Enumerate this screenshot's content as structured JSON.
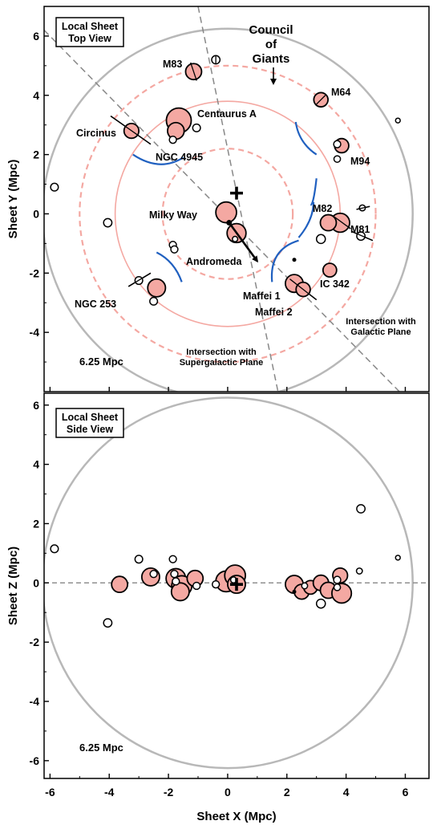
{
  "colors": {
    "galaxy_fill": "#f4a8a2",
    "ring": "#f4a8a2",
    "boundary": "#b8b8b8",
    "wall": "#2060c0",
    "plane_line": "#888888"
  },
  "x_axis_title": "Sheet X (Mpc)",
  "x_ticks": [
    "-6",
    "-4",
    "-2",
    "0",
    "2",
    "4",
    "6"
  ],
  "chart_data": [
    {
      "type": "scatter",
      "title_lines": [
        "Local Sheet",
        "Top View"
      ],
      "xlabel": "Sheet X (Mpc)",
      "ylabel": "Sheet Y (Mpc)",
      "xlim": [
        -6.2,
        6.8
      ],
      "ylim": [
        -6.0,
        7.0
      ],
      "y_ticks": [
        "-4",
        "-2",
        "0",
        "2",
        "4",
        "6"
      ],
      "boundary_radius": 6.25,
      "boundary_label": "6.25 Mpc",
      "rings": [
        {
          "r": 2.2,
          "style": "dashed"
        },
        {
          "r": 3.8,
          "style": "solid"
        },
        {
          "r": 5.0,
          "style": "dashed"
        }
      ],
      "observer_marker": {
        "x": 0.3,
        "y": 0.7,
        "symbol": "+"
      },
      "big_galaxies": [
        {
          "x": -0.05,
          "y": 0.05,
          "r": 0.35,
          "name": "Milky Way"
        },
        {
          "x": 0.3,
          "y": -0.65,
          "r": 0.32,
          "name": "Andromeda"
        },
        {
          "x": -1.65,
          "y": 3.15,
          "r": 0.42,
          "name": "Centaurus A"
        },
        {
          "x": -1.75,
          "y": 2.8,
          "r": 0.28,
          "name": "NGC 4945"
        },
        {
          "x": -1.15,
          "y": 4.8,
          "r": 0.27,
          "name": "M83"
        },
        {
          "x": -3.25,
          "y": 2.8,
          "r": 0.25,
          "name": "Circinus"
        },
        {
          "x": 3.15,
          "y": 3.85,
          "r": 0.24,
          "name": "M64"
        },
        {
          "x": 3.85,
          "y": 2.3,
          "r": 0.24,
          "name": "M94"
        },
        {
          "x": 3.8,
          "y": -0.3,
          "r": 0.32,
          "name": "M81"
        },
        {
          "x": 3.4,
          "y": -0.3,
          "r": 0.27,
          "name": "M82"
        },
        {
          "x": 3.45,
          "y": -1.9,
          "r": 0.23,
          "name": "IC 342"
        },
        {
          "x": 2.25,
          "y": -2.35,
          "r": 0.3,
          "name": "Maffei 1"
        },
        {
          "x": 2.55,
          "y": -2.55,
          "r": 0.24,
          "name": "Maffei 2"
        },
        {
          "x": -2.4,
          "y": -2.5,
          "r": 0.3,
          "name": "NGC 253"
        }
      ],
      "small_galaxies": [
        {
          "x": -5.85,
          "y": 0.9,
          "r": 0.13
        },
        {
          "x": -4.05,
          "y": -0.3,
          "r": 0.14
        },
        {
          "x": -3.0,
          "y": -2.25,
          "r": 0.13
        },
        {
          "x": -2.5,
          "y": -2.95,
          "r": 0.13
        },
        {
          "x": -1.85,
          "y": -1.05,
          "r": 0.12
        },
        {
          "x": -1.8,
          "y": -1.2,
          "r": 0.12
        },
        {
          "x": -1.85,
          "y": 2.5,
          "r": 0.12
        },
        {
          "x": -1.05,
          "y": 2.9,
          "r": 0.13
        },
        {
          "x": -0.4,
          "y": 5.2,
          "r": 0.14
        },
        {
          "x": 3.7,
          "y": 2.35,
          "r": 0.12
        },
        {
          "x": 3.7,
          "y": 1.85,
          "r": 0.11
        },
        {
          "x": 4.55,
          "y": 0.2,
          "r": 0.1
        },
        {
          "x": 3.15,
          "y": -0.85,
          "r": 0.15
        },
        {
          "x": 4.5,
          "y": -0.75,
          "r": 0.14
        },
        {
          "x": 5.75,
          "y": 3.15,
          "r": 0.08
        },
        {
          "x": 0.25,
          "y": -0.85,
          "r": 0.09
        }
      ],
      "dots": [
        {
          "x": 2.25,
          "y": -1.55
        }
      ],
      "bars": [
        {
          "x1": -3.95,
          "y1": 3.3,
          "x2": -2.6,
          "y2": 2.35
        },
        {
          "x1": -1.25,
          "y1": 5.1,
          "x2": -1.05,
          "y2": 4.5
        },
        {
          "x1": 3.0,
          "y1": 3.7,
          "x2": 3.3,
          "y2": 4.0
        },
        {
          "x1": 4.35,
          "y1": 0.15,
          "x2": 4.8,
          "y2": 0.25
        },
        {
          "x1": 3.6,
          "y1": -0.1,
          "x2": 4.15,
          "y2": -0.5
        },
        {
          "x1": 4.2,
          "y1": -0.6,
          "x2": 4.9,
          "y2": -0.9
        },
        {
          "x1": -3.35,
          "y1": -2.45,
          "x2": -2.6,
          "y2": -2.0
        },
        {
          "x1": 2.1,
          "y1": -2.2,
          "x2": 3.0,
          "y2": -2.9
        },
        {
          "x1": -0.4,
          "y1": 5.35,
          "x2": -0.4,
          "y2": 5.05
        }
      ],
      "walls": [
        "M -3.2 2.0 Q -2.3 1.4 -1.5 1.9",
        "M 2.3 3.1 Q 2.4 2.4 3.0 2.0",
        "M 3.0 1.2 Q 2.9 0.3 2.8 0.3",
        "M 1.5 -2.3 Q 1.4 -1.2 2.4 -0.9",
        "M 2.9 0.4 Q 2.9 -0.2 2.4 -0.8",
        "M -2.4 -1.3 Q -1.8 -1.6 -1.55 -2.3"
      ],
      "motion_arrow": {
        "x1": 0.05,
        "y1": -0.3,
        "x2": 1.0,
        "y2": -1.6
      },
      "planes": [
        {
          "x1": -1.0,
          "y1": 7.0,
          "x2": 1.7,
          "y2": -6.0,
          "name": "Intersection with Supergalactic Plane"
        },
        {
          "x1": -6.2,
          "y1": 6.2,
          "x2": 5.8,
          "y2": -6.0,
          "name": "Intersection with Galactic Plane"
        }
      ],
      "annotations": {
        "council": [
          "Council",
          "of",
          "Giants"
        ],
        "supergalactic": [
          "Intersection with",
          "Supergalactic Plane"
        ],
        "galactic": [
          "Intersection with",
          "Galactic Plane"
        ]
      }
    },
    {
      "type": "scatter",
      "title_lines": [
        "Local Sheet",
        "Side View"
      ],
      "xlabel": "Sheet X (Mpc)",
      "ylabel": "Sheet Z (Mpc)",
      "xlim": [
        -6.2,
        6.8
      ],
      "ylim": [
        -6.6,
        6.4
      ],
      "y_ticks": [
        "-6",
        "-4",
        "-2",
        "0",
        "2",
        "4",
        "6"
      ],
      "boundary_radius": 6.25,
      "boundary_label": "6.25 Mpc",
      "plane_line_y": 0,
      "observer_marker": {
        "x": 0.3,
        "y": -0.05,
        "symbol": "+"
      },
      "big_galaxies": [
        {
          "x": -3.65,
          "y": -0.05,
          "r": 0.27
        },
        {
          "x": -2.6,
          "y": 0.2,
          "r": 0.3
        },
        {
          "x": -1.75,
          "y": 0.15,
          "r": 0.33
        },
        {
          "x": -1.55,
          "y": -0.1,
          "r": 0.34
        },
        {
          "x": -1.6,
          "y": -0.3,
          "r": 0.3
        },
        {
          "x": -1.1,
          "y": 0.15,
          "r": 0.27
        },
        {
          "x": -0.05,
          "y": 0.05,
          "r": 0.35
        },
        {
          "x": 0.25,
          "y": 0.25,
          "r": 0.35
        },
        {
          "x": 0.3,
          "y": -0.05,
          "r": 0.3
        },
        {
          "x": 2.25,
          "y": -0.05,
          "r": 0.3
        },
        {
          "x": 2.5,
          "y": -0.3,
          "r": 0.25
        },
        {
          "x": 2.8,
          "y": -0.15,
          "r": 0.23
        },
        {
          "x": 3.15,
          "y": 0.0,
          "r": 0.26
        },
        {
          "x": 3.4,
          "y": -0.25,
          "r": 0.27
        },
        {
          "x": 3.85,
          "y": -0.35,
          "r": 0.33
        },
        {
          "x": 3.8,
          "y": 0.25,
          "r": 0.25
        }
      ],
      "small_galaxies": [
        {
          "x": -5.85,
          "y": 1.15,
          "r": 0.13
        },
        {
          "x": -4.05,
          "y": -1.35,
          "r": 0.14
        },
        {
          "x": -3.0,
          "y": 0.8,
          "r": 0.13
        },
        {
          "x": -2.5,
          "y": 0.3,
          "r": 0.12
        },
        {
          "x": -1.85,
          "y": 0.8,
          "r": 0.12
        },
        {
          "x": -1.8,
          "y": 0.3,
          "r": 0.12
        },
        {
          "x": -1.75,
          "y": 0.05,
          "r": 0.12
        },
        {
          "x": -1.05,
          "y": -0.1,
          "r": 0.12
        },
        {
          "x": -0.4,
          "y": -0.05,
          "r": 0.12
        },
        {
          "x": 0.2,
          "y": 0.1,
          "r": 0.1
        },
        {
          "x": 2.6,
          "y": -0.1,
          "r": 0.1
        },
        {
          "x": 3.15,
          "y": -0.7,
          "r": 0.15
        },
        {
          "x": 3.7,
          "y": 0.1,
          "r": 0.12
        },
        {
          "x": 3.7,
          "y": -0.15,
          "r": 0.11
        },
        {
          "x": 4.45,
          "y": 0.4,
          "r": 0.1
        },
        {
          "x": 4.5,
          "y": 2.5,
          "r": 0.14
        },
        {
          "x": 5.75,
          "y": 0.85,
          "r": 0.08
        }
      ],
      "dots": [
        {
          "x": 2.25,
          "y": -0.3
        }
      ]
    }
  ]
}
